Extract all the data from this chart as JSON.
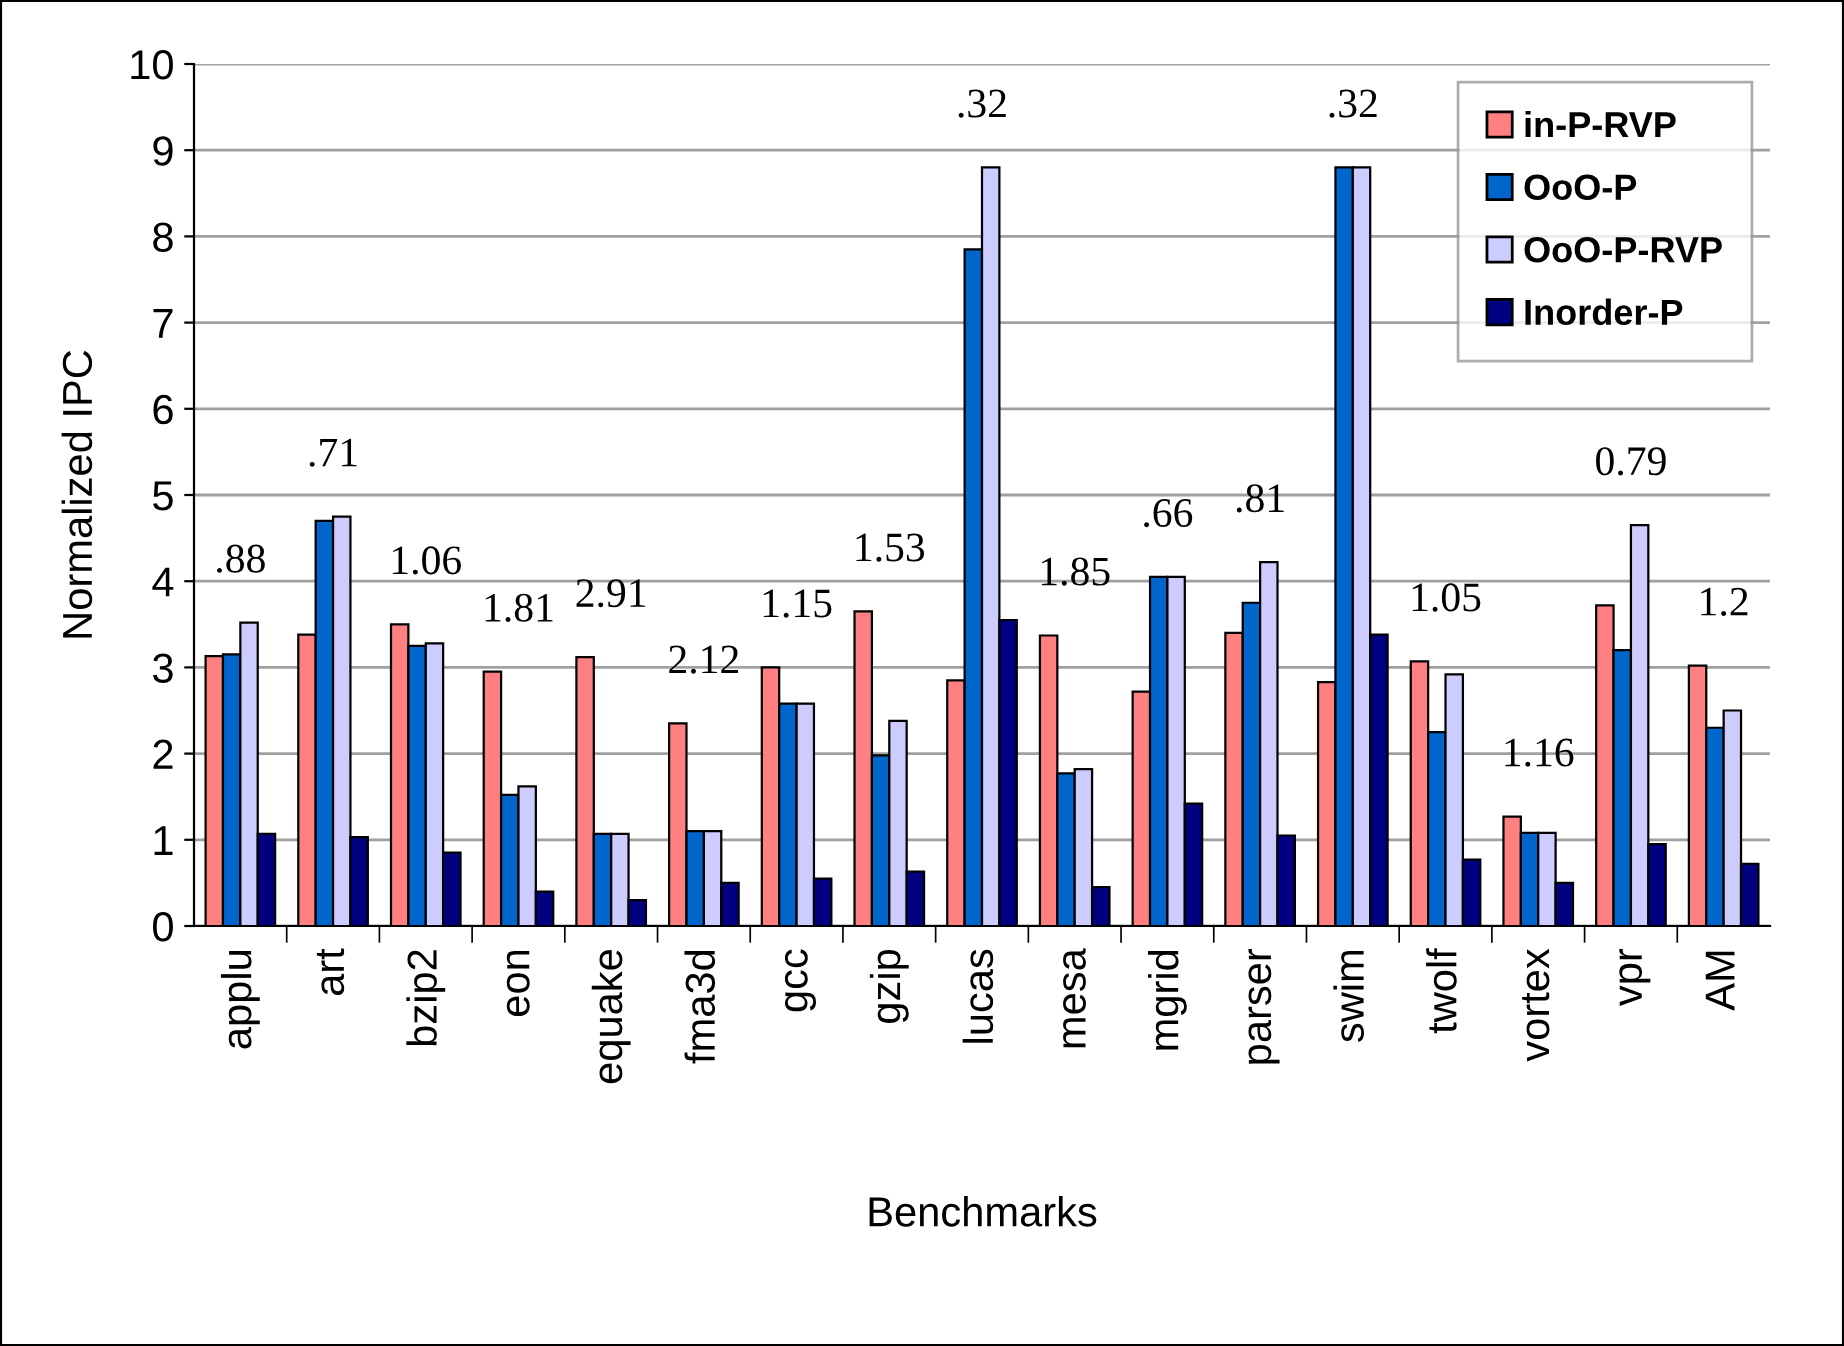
{
  "chart_data": {
    "type": "bar",
    "xlabel": "Benchmarks",
    "ylabel": "Normalized IPC",
    "categories": [
      "applu",
      "art",
      "bzip2",
      "eon",
      "equake",
      "fma3d",
      "gcc",
      "gzip",
      "lucas",
      "mesa",
      "mgrid",
      "parser",
      "swim",
      "twolf",
      "vortex",
      "vpr",
      "AM"
    ],
    "series": [
      {
        "name": "in-P-RVP",
        "color": "#ff8080",
        "values": [
          3.13,
          3.38,
          3.5,
          2.95,
          3.12,
          2.35,
          3.0,
          3.65,
          2.85,
          3.37,
          2.72,
          3.4,
          2.83,
          3.07,
          1.27,
          3.72,
          3.02
        ]
      },
      {
        "name": "OoO-P",
        "color": "#0066cc",
        "values": [
          3.15,
          4.7,
          3.25,
          1.52,
          1.07,
          1.1,
          2.58,
          1.98,
          7.85,
          1.77,
          4.05,
          3.75,
          8.8,
          2.25,
          1.08,
          3.2,
          2.3
        ]
      },
      {
        "name": "OoO-P-RVP",
        "color": "#ccccff",
        "values": [
          3.52,
          4.75,
          3.28,
          1.62,
          1.07,
          1.1,
          2.58,
          2.38,
          8.8,
          1.82,
          4.05,
          4.22,
          8.8,
          2.92,
          1.08,
          4.65,
          2.5
        ]
      },
      {
        "name": "Inorder-P",
        "color": "#000080",
        "values": [
          1.07,
          1.03,
          0.85,
          0.4,
          0.3,
          0.5,
          0.55,
          0.63,
          3.55,
          0.45,
          1.42,
          1.05,
          3.38,
          0.77,
          0.5,
          0.95,
          0.72
        ]
      }
    ],
    "annotations": [
      ".88",
      ".71",
      "1.06",
      "1.81",
      "2.91",
      "2.12",
      "1.15",
      "1.53",
      ".32",
      "1.85",
      ".66",
      ".81",
      ".32",
      "1.05",
      "1.16",
      "0.79",
      "1.2"
    ],
    "ylim": [
      0,
      10
    ],
    "yticks": [
      0,
      1,
      2,
      3,
      4,
      5,
      6,
      7,
      8,
      9,
      10
    ],
    "grid": "y",
    "legend": "top right"
  }
}
